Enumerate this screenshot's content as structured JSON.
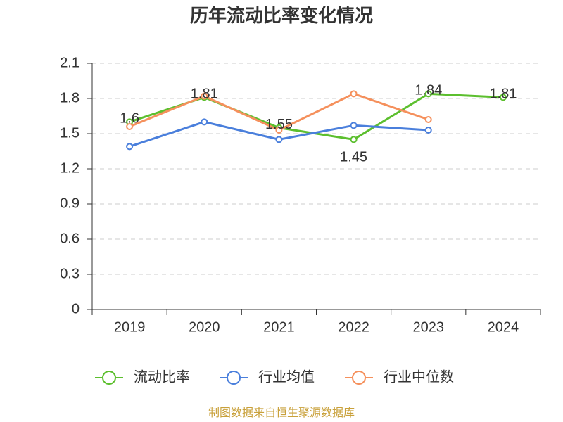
{
  "chart_data": {
    "type": "line",
    "title": "历年流动比率变化情况",
    "categories": [
      "2019",
      "2020",
      "2021",
      "2022",
      "2023",
      "2024"
    ],
    "series": [
      {
        "name": "流动比率",
        "color": "#5cbf2e",
        "values": [
          1.6,
          1.81,
          1.55,
          1.45,
          1.84,
          1.81
        ],
        "show_labels": true
      },
      {
        "name": "行业均值",
        "color": "#4a7fdc",
        "values": [
          1.39,
          1.6,
          1.45,
          1.57,
          1.53,
          null
        ]
      },
      {
        "name": "行业中位数",
        "color": "#f5905c",
        "values": [
          1.56,
          1.82,
          1.53,
          1.84,
          1.62,
          null
        ]
      }
    ],
    "ylim": [
      0,
      2.1
    ],
    "yticks": [
      0,
      0.3,
      0.6,
      0.9,
      1.2,
      1.5,
      1.8,
      2.1
    ],
    "grid": true,
    "legend": "bottom",
    "source": "制图数据来自恒生聚源数据库"
  }
}
